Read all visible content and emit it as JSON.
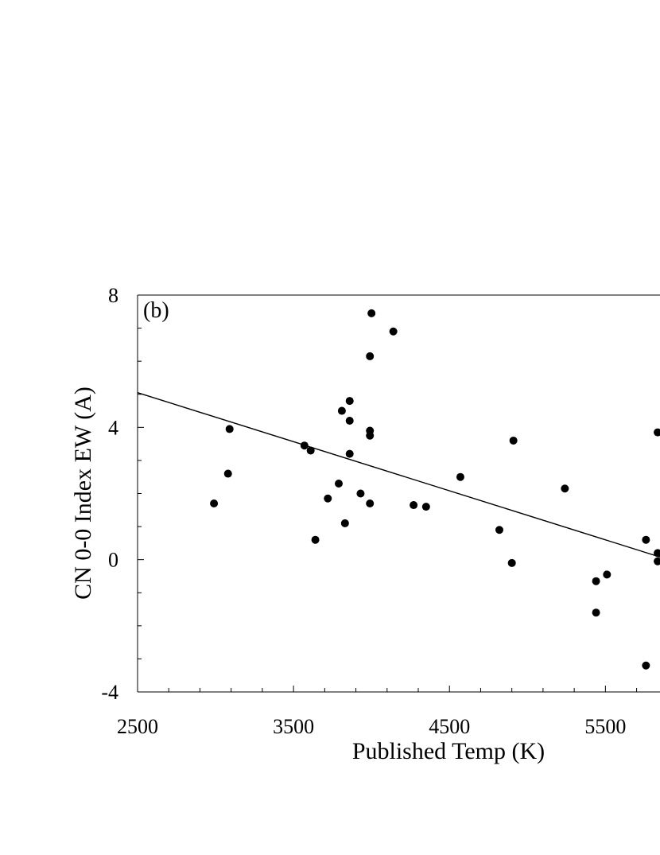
{
  "chart_data": {
    "type": "scatter",
    "panel_label": "(b)",
    "xlabel": "Published Temp (K)",
    "ylabel": "CN 0-0 Index EW (A)",
    "xlim": [
      2500,
      5850
    ],
    "ylim": [
      -4,
      8
    ],
    "x_ticks": [
      2500,
      3500,
      4500,
      5500
    ],
    "x_tick_labels": [
      "2500",
      "3500",
      "4500",
      "5500"
    ],
    "y_ticks": [
      -4,
      0,
      4,
      8
    ],
    "y_tick_labels": [
      "-4",
      "0",
      "4",
      "8"
    ],
    "grid": false,
    "legend": "none",
    "colors": {
      "points": "#000000",
      "line": "#000000",
      "axes": "#000000"
    },
    "points": [
      {
        "x": 2990,
        "y": 1.7
      },
      {
        "x": 3090,
        "y": 3.95
      },
      {
        "x": 3080,
        "y": 2.6
      },
      {
        "x": 3570,
        "y": 3.45
      },
      {
        "x": 3610,
        "y": 3.3
      },
      {
        "x": 3640,
        "y": 0.6
      },
      {
        "x": 3720,
        "y": 1.85
      },
      {
        "x": 3790,
        "y": 2.3
      },
      {
        "x": 3810,
        "y": 4.5
      },
      {
        "x": 3830,
        "y": 1.1
      },
      {
        "x": 3860,
        "y": 4.8
      },
      {
        "x": 3860,
        "y": 4.2
      },
      {
        "x": 3860,
        "y": 3.2
      },
      {
        "x": 3930,
        "y": 2.0
      },
      {
        "x": 3990,
        "y": 3.9
      },
      {
        "x": 3990,
        "y": 3.75
      },
      {
        "x": 3990,
        "y": 6.15
      },
      {
        "x": 3990,
        "y": 1.7
      },
      {
        "x": 4000,
        "y": 7.45
      },
      {
        "x": 4140,
        "y": 6.9
      },
      {
        "x": 4270,
        "y": 1.65
      },
      {
        "x": 4350,
        "y": 1.6
      },
      {
        "x": 4570,
        "y": 2.5
      },
      {
        "x": 4820,
        "y": 0.9
      },
      {
        "x": 4900,
        "y": -0.1
      },
      {
        "x": 4910,
        "y": 3.6
      },
      {
        "x": 5240,
        "y": 2.15
      },
      {
        "x": 5440,
        "y": -0.65
      },
      {
        "x": 5440,
        "y": -1.6
      },
      {
        "x": 5510,
        "y": -0.45
      },
      {
        "x": 5760,
        "y": 0.6
      },
      {
        "x": 5760,
        "y": -3.2
      },
      {
        "x": 5835,
        "y": 3.85
      },
      {
        "x": 5835,
        "y": 0.2
      },
      {
        "x": 5835,
        "y": -0.05
      }
    ],
    "fit_line": {
      "x": [
        2500,
        5850
      ],
      "y": [
        5.05,
        0.08
      ]
    }
  }
}
